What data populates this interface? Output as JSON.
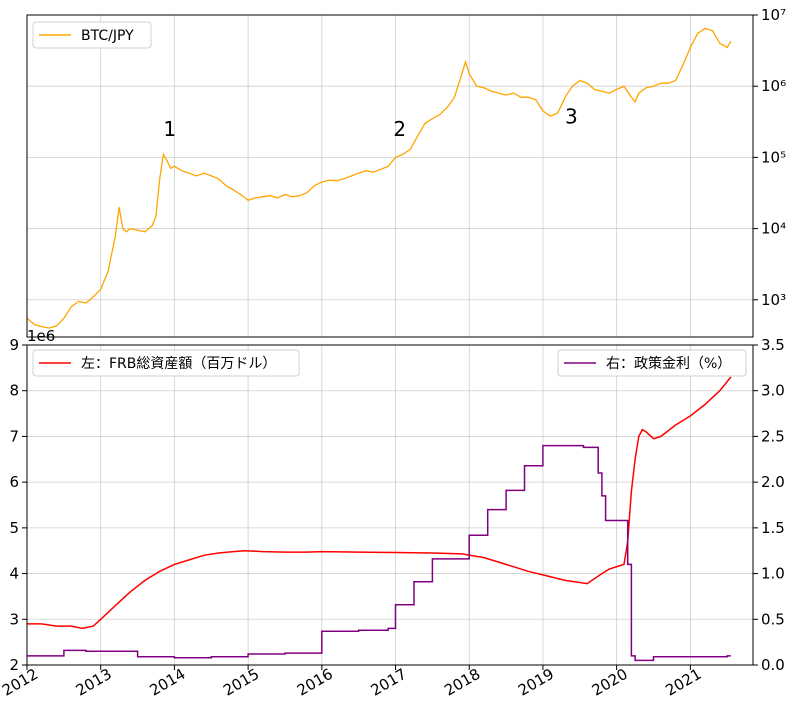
{
  "chart_data": [
    {
      "type": "line",
      "yscale": "log",
      "ylim": [
        300,
        10000000
      ],
      "y_tick_labels": [
        "10³",
        "10⁴",
        "10⁵",
        "10⁶",
        "10⁷"
      ],
      "y_tick_values": [
        1000,
        10000,
        100000,
        1000000,
        10000000
      ],
      "grid": true,
      "legend_position": "top-left",
      "series": [
        {
          "name": "BTC/JPY",
          "color": "#FFA500",
          "x": [
            2012.0,
            2012.1,
            2012.2,
            2012.3,
            2012.4,
            2012.5,
            2012.6,
            2012.7,
            2012.8,
            2012.9,
            2013.0,
            2013.1,
            2013.2,
            2013.25,
            2013.3,
            2013.35,
            2013.4,
            2013.5,
            2013.6,
            2013.7,
            2013.75,
            2013.8,
            2013.85,
            2013.9,
            2013.95,
            2014.0,
            2014.1,
            2014.2,
            2014.3,
            2014.4,
            2014.5,
            2014.6,
            2014.7,
            2014.8,
            2014.9,
            2015.0,
            2015.1,
            2015.2,
            2015.3,
            2015.4,
            2015.5,
            2015.6,
            2015.7,
            2015.8,
            2015.9,
            2016.0,
            2016.1,
            2016.2,
            2016.3,
            2016.4,
            2016.5,
            2016.6,
            2016.7,
            2016.8,
            2016.9,
            2017.0,
            2017.1,
            2017.2,
            2017.3,
            2017.4,
            2017.5,
            2017.6,
            2017.7,
            2017.8,
            2017.9,
            2017.95,
            2018.0,
            2018.1,
            2018.2,
            2018.3,
            2018.4,
            2018.5,
            2018.6,
            2018.7,
            2018.8,
            2018.9,
            2019.0,
            2019.1,
            2019.2,
            2019.3,
            2019.4,
            2019.5,
            2019.6,
            2019.7,
            2019.8,
            2019.9,
            2020.0,
            2020.1,
            2020.2,
            2020.25,
            2020.3,
            2020.4,
            2020.5,
            2020.6,
            2020.7,
            2020.8,
            2020.9,
            2021.0,
            2021.1,
            2021.2,
            2021.3,
            2021.4,
            2021.5,
            2021.55
          ],
          "y": [
            550,
            450,
            420,
            400,
            430,
            550,
            800,
            950,
            900,
            1100,
            1400,
            2500,
            8000,
            20000,
            10000,
            9000,
            10000,
            9500,
            9000,
            11000,
            15000,
            50000,
            110000,
            90000,
            70000,
            75000,
            65000,
            60000,
            55000,
            60000,
            55000,
            50000,
            40000,
            35000,
            30000,
            25000,
            27000,
            28000,
            29000,
            27000,
            30000,
            28000,
            29000,
            32000,
            40000,
            45000,
            48000,
            47000,
            50000,
            55000,
            60000,
            65000,
            62000,
            68000,
            75000,
            100000,
            110000,
            130000,
            200000,
            300000,
            350000,
            400000,
            500000,
            700000,
            1500000,
            2200000,
            1500000,
            1000000,
            950000,
            850000,
            800000,
            750000,
            800000,
            700000,
            700000,
            650000,
            450000,
            380000,
            420000,
            700000,
            1000000,
            1200000,
            1100000,
            900000,
            850000,
            800000,
            900000,
            1000000,
            700000,
            600000,
            800000,
            950000,
            1000000,
            1100000,
            1100000,
            1200000,
            2000000,
            3500000,
            5500000,
            6500000,
            6000000,
            4000000,
            3500000,
            4300000
          ]
        }
      ],
      "annotations": [
        {
          "text": "1",
          "x": 2013.85,
          "y": 200000
        },
        {
          "text": "2",
          "x": 2016.97,
          "y": 200000
        },
        {
          "text": "3",
          "x": 2019.3,
          "y": 300000
        }
      ]
    },
    {
      "type": "line",
      "x_tick_labels": [
        "2012",
        "2013",
        "2014",
        "2015",
        "2016",
        "2017",
        "2018",
        "2019",
        "2020",
        "2021"
      ],
      "x_range": [
        2012.0,
        2021.85
      ],
      "ylim_left": [
        2,
        9
      ],
      "ylim_left_label": "1e6",
      "y_left_ticks": [
        "2",
        "3",
        "4",
        "5",
        "6",
        "7",
        "8",
        "9"
      ],
      "ylim_right": [
        0.0,
        3.5
      ],
      "y_right_ticks": [
        "0.0",
        "0.5",
        "1.0",
        "1.5",
        "2.0",
        "2.5",
        "3.0",
        "3.5"
      ],
      "grid": true,
      "legend_left_position": "top-left",
      "legend_right_position": "top-right",
      "series": [
        {
          "name": "左：FRB総資産額（百万ドル）",
          "axis": "left",
          "color": "#FF0000",
          "x": [
            2012.0,
            2012.2,
            2012.4,
            2012.6,
            2012.75,
            2012.9,
            2013.0,
            2013.2,
            2013.4,
            2013.6,
            2013.8,
            2014.0,
            2014.2,
            2014.4,
            2014.6,
            2014.8,
            2014.95,
            2015.2,
            2015.5,
            2015.8,
            2016.0,
            2016.5,
            2017.0,
            2017.5,
            2017.9,
            2018.2,
            2018.5,
            2018.8,
            2019.0,
            2019.3,
            2019.6,
            2019.8,
            2019.9,
            2020.1,
            2020.15,
            2020.2,
            2020.25,
            2020.3,
            2020.35,
            2020.4,
            2020.5,
            2020.6,
            2020.8,
            2021.0,
            2021.2,
            2021.4,
            2021.55
          ],
          "y": [
            2.9,
            2.9,
            2.85,
            2.85,
            2.8,
            2.85,
            3.0,
            3.3,
            3.6,
            3.85,
            4.05,
            4.2,
            4.3,
            4.4,
            4.45,
            4.48,
            4.5,
            4.48,
            4.47,
            4.47,
            4.48,
            4.47,
            4.46,
            4.45,
            4.43,
            4.35,
            4.2,
            4.05,
            3.97,
            3.85,
            3.78,
            4.0,
            4.1,
            4.2,
            4.7,
            5.8,
            6.5,
            7.0,
            7.15,
            7.1,
            6.95,
            7.0,
            7.25,
            7.45,
            7.7,
            8.0,
            8.3
          ]
        },
        {
          "name": "右：政策金利（%）",
          "axis": "right",
          "color": "#800080",
          "x": [
            2012.0,
            2012.5,
            2012.8,
            2013.0,
            2013.5,
            2014.0,
            2014.5,
            2015.0,
            2015.5,
            2015.95,
            2016.0,
            2016.5,
            2016.9,
            2016.95,
            2017.0,
            2017.2,
            2017.25,
            2017.45,
            2017.5,
            2017.95,
            2018.0,
            2018.2,
            2018.25,
            2018.45,
            2018.5,
            2018.7,
            2018.75,
            2018.95,
            2019.0,
            2019.5,
            2019.55,
            2019.7,
            2019.75,
            2019.8,
            2019.85,
            2020.1,
            2020.15,
            2020.2,
            2020.25,
            2020.5,
            2021.0,
            2021.5,
            2021.55
          ],
          "y": [
            0.1,
            0.16,
            0.15,
            0.15,
            0.09,
            0.08,
            0.09,
            0.12,
            0.13,
            0.13,
            0.37,
            0.38,
            0.4,
            0.4,
            0.66,
            0.66,
            0.91,
            0.91,
            1.16,
            1.16,
            1.42,
            1.42,
            1.7,
            1.7,
            1.91,
            1.91,
            2.18,
            2.18,
            2.4,
            2.4,
            2.38,
            2.38,
            2.1,
            1.85,
            1.58,
            1.58,
            1.1,
            0.1,
            0.05,
            0.09,
            0.09,
            0.1,
            0.1
          ]
        }
      ]
    }
  ]
}
